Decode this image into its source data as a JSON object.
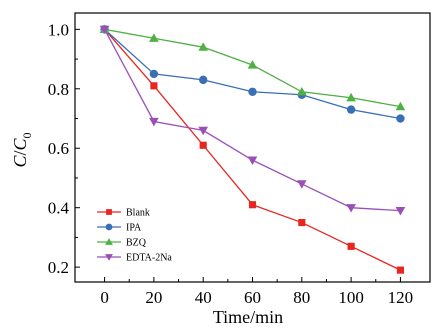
{
  "chart_data": {
    "type": "line",
    "xlabel": "Time/min",
    "ylabel_main": "C",
    "ylabel_sep": "/",
    "ylabel_sub_base": "C",
    "ylabel_subscript": "0",
    "xlim": [
      -12,
      132
    ],
    "ylim": [
      0.15,
      1.055
    ],
    "xticks": [
      0,
      20,
      40,
      60,
      80,
      100,
      120
    ],
    "yticks": [
      0.2,
      0.4,
      0.6,
      0.8,
      1.0
    ],
    "xtick_labels": [
      "0",
      "20",
      "40",
      "60",
      "80",
      "100",
      "120"
    ],
    "ytick_labels": [
      "0.2",
      "0.4",
      "0.6",
      "0.8",
      "1.0"
    ],
    "legend_position": "bottom-left",
    "x": [
      0,
      20,
      40,
      60,
      80,
      100,
      120
    ],
    "series": [
      {
        "name": "Blank",
        "color": "#e8251f",
        "marker": "square",
        "values": [
          1.0,
          0.81,
          0.61,
          0.41,
          0.35,
          0.27,
          0.19
        ]
      },
      {
        "name": "IPA",
        "color": "#3a6fb5",
        "marker": "circle",
        "values": [
          1.0,
          0.85,
          0.83,
          0.79,
          0.78,
          0.73,
          0.7
        ]
      },
      {
        "name": "BZQ",
        "color": "#4fb043",
        "marker": "triangle-up",
        "values": [
          1.0,
          0.97,
          0.94,
          0.88,
          0.79,
          0.77,
          0.74
        ]
      },
      {
        "name": "EDTA-2Na",
        "color": "#9a4fb8",
        "marker": "triangle-down",
        "values": [
          1.0,
          0.69,
          0.66,
          0.56,
          0.48,
          0.4,
          0.39
        ]
      }
    ]
  }
}
